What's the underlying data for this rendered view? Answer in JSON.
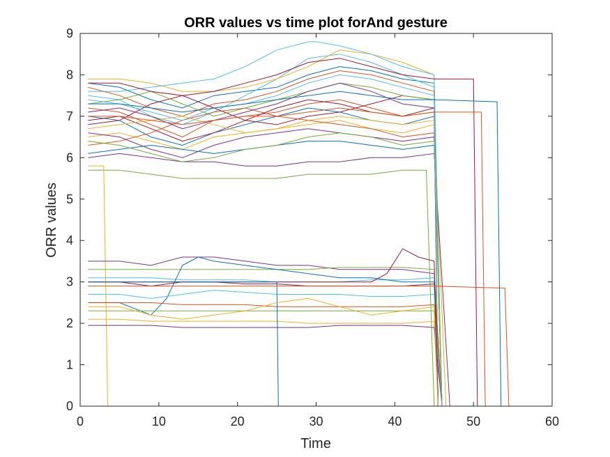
{
  "chart_data": {
    "type": "line",
    "title": "ORR values vs time plot forAnd gesture",
    "xlabel": "Time",
    "ylabel": "ORR values",
    "xlim": [
      0,
      60
    ],
    "ylim": [
      0,
      9
    ],
    "xticks": [
      0,
      10,
      20,
      30,
      40,
      50,
      60
    ],
    "yticks": [
      0,
      1,
      2,
      3,
      4,
      5,
      6,
      7,
      8,
      9
    ],
    "grid": false,
    "legend": "none",
    "series_count_note": "several hundred overlapping trajectories; representative subset reconstructed",
    "colors": [
      "#0072BD",
      "#D95319",
      "#EDB120",
      "#7E2F8E",
      "#77AC30",
      "#4DBEEE",
      "#A2142F"
    ],
    "series": [
      {
        "x": [
          1,
          5,
          9,
          13,
          17,
          21,
          25,
          29,
          33,
          37,
          41,
          45,
          45.5
        ],
        "values": [
          7.8,
          7.7,
          7.4,
          7.2,
          7.5,
          7.6,
          7.7,
          8.0,
          8.2,
          8.1,
          7.9,
          7.8,
          0
        ]
      },
      {
        "x": [
          1,
          5,
          9,
          13,
          17,
          21,
          25,
          29,
          33,
          37,
          41,
          45,
          46
        ],
        "values": [
          7.2,
          7.1,
          6.8,
          6.5,
          6.9,
          7.0,
          7.1,
          7.3,
          7.4,
          7.2,
          7.0,
          7.1,
          0
        ]
      },
      {
        "x": [
          1,
          5,
          9,
          13,
          17,
          21,
          25,
          29,
          33,
          37,
          41,
          45,
          46.5
        ],
        "values": [
          6.5,
          6.6,
          6.4,
          6.2,
          6.5,
          6.6,
          6.7,
          6.8,
          6.9,
          6.7,
          6.6,
          6.8,
          0
        ]
      },
      {
        "x": [
          1,
          5,
          9,
          13,
          17,
          21,
          25,
          29,
          33,
          37,
          41,
          45,
          47
        ],
        "values": [
          6.0,
          6.1,
          6.0,
          5.9,
          5.9,
          5.8,
          5.8,
          5.9,
          5.9,
          6.0,
          6.0,
          6.1,
          0
        ]
      },
      {
        "x": [
          1,
          5,
          9,
          13,
          17,
          21,
          25,
          29,
          33,
          37,
          41,
          44,
          45
        ],
        "values": [
          5.7,
          5.7,
          5.6,
          5.5,
          5.5,
          5.5,
          5.5,
          5.6,
          5.6,
          5.6,
          5.7,
          5.7,
          0
        ]
      },
      {
        "x": [
          1,
          5,
          9,
          13,
          17,
          21,
          25,
          29,
          33,
          37,
          41,
          45,
          45.5
        ],
        "values": [
          7.5,
          7.4,
          7.0,
          6.8,
          7.1,
          7.5,
          7.9,
          8.4,
          8.5,
          8.3,
          8.0,
          7.7,
          0
        ]
      },
      {
        "x": [
          1,
          5,
          9,
          13,
          17,
          21,
          25,
          29,
          33,
          37,
          41,
          45,
          46
        ],
        "values": [
          6.8,
          6.9,
          7.3,
          7.5,
          7.2,
          6.9,
          6.8,
          7.0,
          7.1,
          7.3,
          7.5,
          7.4,
          0
        ]
      },
      {
        "x": [
          1,
          5,
          9,
          13,
          17,
          21,
          25,
          29,
          33,
          37,
          41,
          45,
          45.5
        ],
        "values": [
          7.0,
          6.9,
          6.5,
          6.3,
          6.6,
          6.8,
          7.0,
          7.2,
          7.1,
          6.9,
          6.8,
          7.0,
          0
        ]
      },
      {
        "x": [
          1,
          5,
          9,
          13,
          17,
          21,
          25,
          29,
          33,
          37,
          41,
          45,
          46
        ],
        "values": [
          6.3,
          6.4,
          6.6,
          6.9,
          7.1,
          7.2,
          7.0,
          6.9,
          6.8,
          6.7,
          6.5,
          6.6,
          0
        ]
      },
      {
        "x": [
          1,
          5,
          9,
          13,
          17,
          21,
          25,
          29,
          33,
          37,
          41,
          45,
          45.5
        ],
        "values": [
          7.9,
          7.9,
          7.8,
          7.6,
          7.6,
          7.7,
          7.9,
          8.2,
          8.6,
          8.5,
          8.3,
          8.0,
          0
        ]
      },
      {
        "x": [
          1,
          5,
          9,
          13,
          17,
          21,
          25,
          29,
          33,
          37,
          41,
          45,
          46
        ],
        "values": [
          6.6,
          6.5,
          6.2,
          6.0,
          6.3,
          6.5,
          6.6,
          6.7,
          6.6,
          6.5,
          6.4,
          6.5,
          0
        ]
      },
      {
        "x": [
          1,
          5,
          9,
          13,
          17,
          21,
          25,
          29,
          33,
          37,
          41,
          45,
          45.5
        ],
        "values": [
          7.3,
          7.4,
          7.6,
          7.3,
          7.0,
          7.2,
          7.4,
          7.6,
          7.8,
          7.7,
          7.5,
          7.4,
          0
        ]
      },
      {
        "x": [
          1,
          5,
          9,
          13,
          17,
          21,
          25,
          29,
          30,
          33,
          37,
          41,
          45,
          46
        ],
        "values": [
          7.6,
          7.6,
          7.7,
          7.8,
          7.9,
          8.2,
          8.6,
          8.8,
          8.8,
          8.7,
          8.5,
          8.2,
          8.0,
          0
        ]
      },
      {
        "x": [
          1,
          5,
          9,
          13,
          17,
          21,
          25,
          29,
          33,
          37,
          41,
          45,
          45.5
        ],
        "values": [
          6.9,
          7.0,
          6.7,
          6.4,
          6.6,
          6.9,
          7.2,
          7.4,
          7.3,
          7.1,
          7.0,
          7.2,
          0
        ]
      },
      {
        "x": [
          1,
          5,
          9,
          13,
          17,
          21,
          25,
          29,
          33,
          37,
          41,
          45,
          46
        ],
        "values": [
          6.1,
          6.2,
          6.3,
          6.2,
          6.1,
          6.2,
          6.3,
          6.4,
          6.4,
          6.3,
          6.2,
          6.3,
          0
        ]
      },
      {
        "x": [
          1,
          5,
          9,
          13,
          17,
          21,
          25,
          29,
          33,
          37,
          41,
          45,
          45.5
        ],
        "values": [
          7.7,
          7.5,
          7.2,
          7.0,
          7.3,
          7.4,
          7.6,
          7.9,
          8.1,
          8.0,
          7.8,
          7.6,
          0
        ]
      },
      {
        "x": [
          1,
          5,
          9,
          13,
          17,
          21,
          25,
          29,
          33,
          37,
          41,
          45,
          46
        ],
        "values": [
          6.7,
          6.8,
          6.9,
          7.0,
          6.8,
          6.6,
          6.7,
          6.9,
          7.0,
          6.9,
          6.8,
          6.9,
          0
        ]
      },
      {
        "x": [
          1,
          5,
          9,
          13,
          17,
          21,
          25,
          29,
          33,
          37,
          41,
          45,
          45.5
        ],
        "values": [
          7.1,
          7.2,
          7.0,
          6.7,
          6.9,
          7.1,
          7.3,
          7.6,
          7.8,
          7.6,
          7.3,
          7.2,
          0
        ]
      },
      {
        "x": [
          1,
          5,
          9,
          13,
          17,
          21,
          25,
          29,
          33,
          37,
          41,
          45,
          46
        ],
        "values": [
          6.4,
          6.3,
          6.1,
          5.9,
          6.0,
          6.2,
          6.3,
          6.5,
          6.6,
          6.5,
          6.3,
          6.4,
          0
        ]
      },
      {
        "x": [
          1,
          5,
          9,
          13,
          17,
          21,
          25,
          29,
          33,
          37,
          41,
          45,
          45.5
        ],
        "values": [
          7.4,
          7.3,
          7.1,
          6.9,
          7.2,
          7.3,
          7.5,
          7.8,
          8.0,
          7.9,
          7.7,
          7.5,
          0
        ]
      },
      {
        "x": [
          1,
          5,
          9,
          13,
          17,
          21,
          25,
          29,
          33,
          37,
          41,
          45,
          50,
          50.5
        ],
        "values": [
          7.8,
          7.8,
          7.6,
          7.5,
          7.6,
          7.8,
          8.0,
          8.3,
          8.4,
          8.2,
          8.0,
          7.9,
          7.9,
          0
        ]
      },
      {
        "x": [
          1,
          5,
          9,
          13,
          17,
          21,
          25,
          29,
          33,
          37,
          41,
          45,
          53,
          53.5
        ],
        "values": [
          7.3,
          7.3,
          7.2,
          7.1,
          7.2,
          7.3,
          7.4,
          7.5,
          7.6,
          7.5,
          7.4,
          7.4,
          7.35,
          0
        ]
      },
      {
        "x": [
          1,
          5,
          9,
          13,
          17,
          21,
          25,
          29,
          33,
          37,
          41,
          45,
          51,
          51.5
        ],
        "values": [
          7.0,
          7.0,
          6.9,
          6.8,
          6.9,
          7.0,
          7.0,
          7.1,
          7.2,
          7.1,
          7.0,
          7.1,
          7.1,
          0
        ]
      },
      {
        "x": [
          1,
          3,
          3.5,
          55
        ],
        "values": [
          5.8,
          5.8,
          0,
          0
        ]
      },
      {
        "x": [
          1,
          5,
          9,
          13,
          17,
          21,
          25,
          29,
          33,
          37,
          41,
          45,
          46
        ],
        "values": [
          3.5,
          3.5,
          3.4,
          3.6,
          3.6,
          3.5,
          3.4,
          3.4,
          3.3,
          3.3,
          3.3,
          3.2,
          0
        ]
      },
      {
        "x": [
          1,
          5,
          9,
          13,
          17,
          21,
          25,
          29,
          33,
          37,
          41,
          45,
          46
        ],
        "values": [
          3.3,
          3.3,
          3.3,
          3.3,
          3.3,
          3.3,
          3.3,
          3.3,
          3.35,
          3.35,
          3.35,
          3.3,
          0
        ]
      },
      {
        "x": [
          1,
          5,
          9,
          13,
          17,
          21,
          25,
          29,
          33,
          37,
          41,
          45,
          45.5
        ],
        "values": [
          3.1,
          3.1,
          3.1,
          3.05,
          3.05,
          3.05,
          3.0,
          3.0,
          3.0,
          3.05,
          3.05,
          3.1,
          0
        ]
      },
      {
        "x": [
          1,
          5,
          9,
          13,
          17,
          21,
          25,
          29,
          33,
          37,
          41,
          45,
          46
        ],
        "values": [
          3.0,
          3.0,
          2.9,
          3.0,
          3.0,
          2.95,
          2.95,
          2.9,
          2.9,
          2.9,
          2.9,
          2.95,
          0
        ]
      },
      {
        "x": [
          1,
          5,
          9,
          11,
          13,
          15,
          17,
          21,
          25,
          29,
          33,
          37,
          41,
          45,
          45.5
        ],
        "values": [
          2.5,
          2.5,
          2.2,
          2.6,
          3.4,
          3.6,
          3.5,
          3.4,
          3.3,
          3.2,
          3.1,
          3.1,
          3.0,
          3.0,
          0
        ]
      },
      {
        "x": [
          1,
          5,
          9,
          13,
          17,
          21,
          25,
          29,
          33,
          37,
          41,
          45,
          46
        ],
        "values": [
          2.5,
          2.5,
          2.5,
          2.45,
          2.45,
          2.45,
          2.4,
          2.4,
          2.4,
          2.4,
          2.4,
          2.45,
          0
        ]
      },
      {
        "x": [
          1,
          5,
          9,
          13,
          17,
          21,
          25,
          29,
          33,
          37,
          41,
          45,
          45.5
        ],
        "values": [
          2.1,
          2.1,
          2.05,
          2.05,
          2.05,
          2.05,
          2.05,
          2.0,
          2.0,
          2.0,
          2.0,
          2.05,
          0
        ]
      },
      {
        "x": [
          1,
          5,
          9,
          13,
          17,
          21,
          25,
          29,
          33,
          37,
          41,
          45,
          46
        ],
        "values": [
          1.95,
          1.95,
          1.95,
          1.9,
          1.9,
          1.9,
          1.9,
          1.9,
          1.95,
          1.95,
          1.95,
          1.9,
          0
        ]
      },
      {
        "x": [
          1,
          5,
          9,
          13,
          17,
          21,
          25,
          29,
          33,
          37,
          41,
          45,
          45.5
        ],
        "values": [
          2.3,
          2.3,
          2.3,
          2.3,
          2.3,
          2.3,
          2.3,
          2.3,
          2.3,
          2.3,
          2.3,
          2.3,
          0
        ]
      },
      {
        "x": [
          1,
          5,
          9,
          13,
          17,
          21,
          25,
          29,
          33,
          37,
          41,
          45,
          46
        ],
        "values": [
          2.7,
          2.7,
          2.6,
          2.7,
          2.8,
          2.75,
          2.7,
          2.7,
          2.7,
          2.65,
          2.65,
          2.7,
          0
        ]
      },
      {
        "x": [
          1,
          5,
          9,
          13,
          17,
          21,
          25,
          29,
          33,
          37,
          39,
          41,
          43,
          45,
          45.5
        ],
        "values": [
          3.0,
          3.0,
          3.0,
          3.0,
          3.0,
          3.0,
          3.0,
          3.0,
          3.0,
          3.0,
          3.2,
          3.8,
          3.6,
          3.5,
          0
        ]
      },
      {
        "x": [
          1,
          5,
          9,
          13,
          17,
          21,
          25,
          25.2,
          45
        ],
        "values": [
          3.0,
          3.0,
          3.0,
          3.0,
          3.0,
          3.0,
          3.0,
          0,
          0
        ]
      },
      {
        "x": [
          1,
          5,
          9,
          13,
          17,
          21,
          25,
          29,
          33,
          37,
          41,
          45,
          54,
          54.5
        ],
        "values": [
          2.9,
          2.9,
          2.9,
          2.9,
          2.9,
          2.9,
          2.9,
          2.9,
          2.9,
          2.9,
          2.9,
          2.9,
          2.85,
          0
        ]
      },
      {
        "x": [
          1,
          5,
          9,
          13,
          17,
          21,
          25,
          29,
          33,
          37,
          41,
          45,
          45.5
        ],
        "values": [
          2.4,
          2.4,
          2.2,
          2.1,
          2.2,
          2.3,
          2.5,
          2.6,
          2.4,
          2.2,
          2.3,
          2.4,
          0
        ]
      }
    ]
  }
}
